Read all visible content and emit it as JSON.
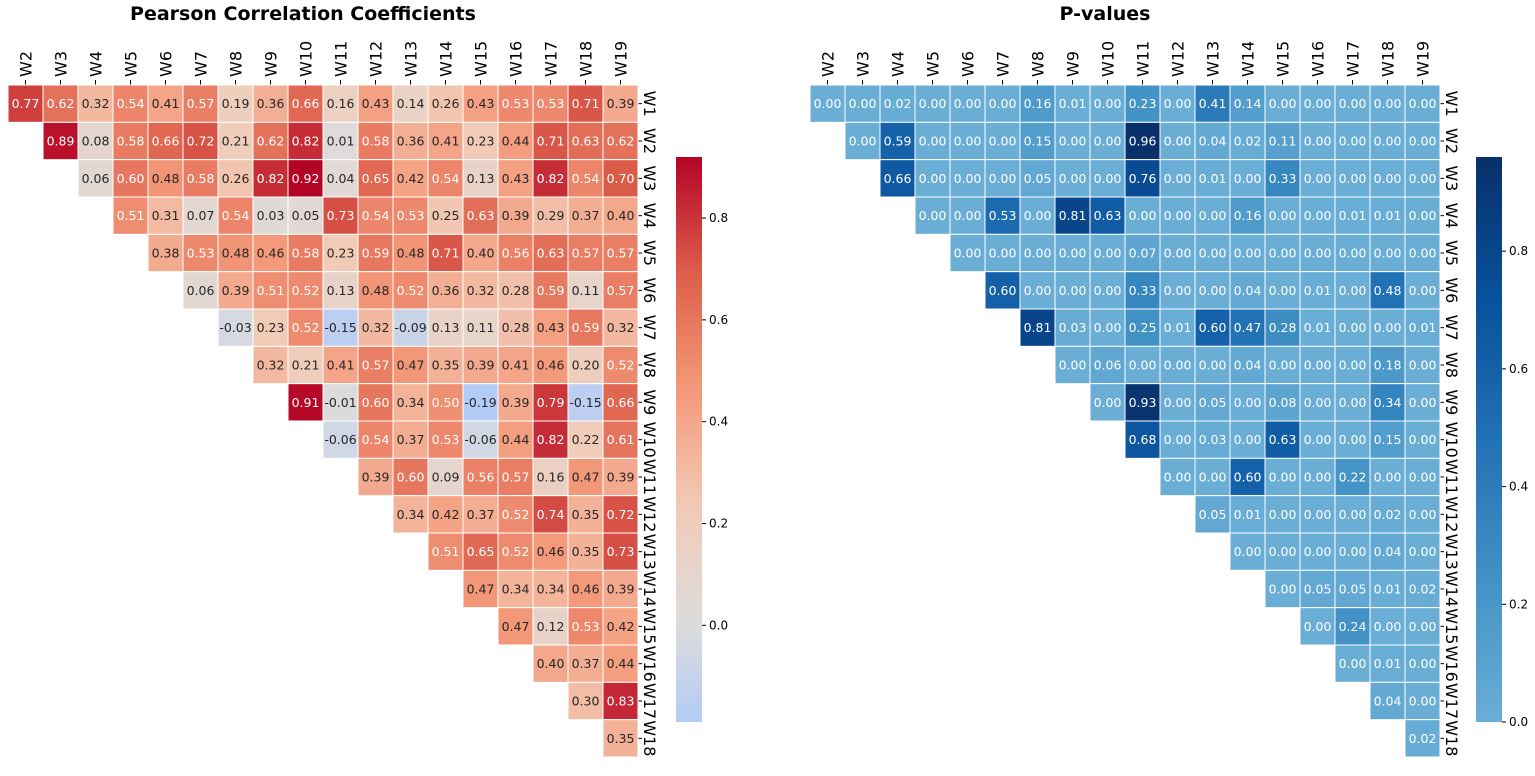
{
  "chart_data": [
    {
      "type": "heatmap",
      "title": "Pearson Correlation Coefficients",
      "row_labels": [
        "W1",
        "W2",
        "W3",
        "W4",
        "W5",
        "W6",
        "W7",
        "W8",
        "W9",
        "W10",
        "W11",
        "W12",
        "W13",
        "W14",
        "W15",
        "W16",
        "W17",
        "W18"
      ],
      "col_labels": [
        "W2",
        "W3",
        "W4",
        "W5",
        "W6",
        "W7",
        "W8",
        "W9",
        "W10",
        "W11",
        "W12",
        "W13",
        "W14",
        "W15",
        "W16",
        "W17",
        "W18",
        "W19"
      ],
      "mask": "upper-triangle; row Wi starts at column W(i+1)",
      "values": [
        [
          0.77,
          0.62,
          0.32,
          0.54,
          0.41,
          0.57,
          0.19,
          0.36,
          0.66,
          0.16,
          0.43,
          0.14,
          0.26,
          0.43,
          0.53,
          0.53,
          0.71,
          0.39
        ],
        [
          0.89,
          0.08,
          0.58,
          0.66,
          0.72,
          0.21,
          0.62,
          0.82,
          0.01,
          0.58,
          0.36,
          0.41,
          0.23,
          0.44,
          0.71,
          0.63,
          0.62
        ],
        [
          0.06,
          0.6,
          0.48,
          0.58,
          0.26,
          0.82,
          0.92,
          0.04,
          0.65,
          0.42,
          0.54,
          0.13,
          0.43,
          0.82,
          0.54,
          0.7
        ],
        [
          0.51,
          0.31,
          0.07,
          0.54,
          0.03,
          0.05,
          0.73,
          0.54,
          0.53,
          0.25,
          0.63,
          0.39,
          0.29,
          0.37,
          0.4
        ],
        [
          0.38,
          0.53,
          0.48,
          0.46,
          0.58,
          0.23,
          0.59,
          0.48,
          0.71,
          0.4,
          0.56,
          0.63,
          0.57,
          0.57
        ],
        [
          0.06,
          0.39,
          0.51,
          0.52,
          0.13,
          0.48,
          0.52,
          0.36,
          0.32,
          0.28,
          0.59,
          0.11,
          0.57
        ],
        [
          -0.03,
          0.23,
          0.52,
          -0.15,
          0.32,
          -0.09,
          0.13,
          0.11,
          0.28,
          0.43,
          0.59,
          0.32
        ],
        [
          0.32,
          0.21,
          0.41,
          0.57,
          0.47,
          0.35,
          0.39,
          0.41,
          0.46,
          0.2,
          0.52
        ],
        [
          0.91,
          -0.01,
          0.6,
          0.34,
          0.5,
          -0.19,
          0.39,
          0.79,
          -0.15,
          0.66
        ],
        [
          -0.06,
          0.54,
          0.37,
          0.53,
          -0.06,
          0.44,
          0.82,
          0.22,
          0.61
        ],
        [
          0.39,
          0.6,
          0.09,
          0.56,
          0.57,
          0.16,
          0.47,
          0.39
        ],
        [
          0.34,
          0.42,
          0.37,
          0.52,
          0.74,
          0.35,
          0.72
        ],
        [
          0.51,
          0.65,
          0.52,
          0.46,
          0.35,
          0.73
        ],
        [
          0.47,
          0.34,
          0.34,
          0.46,
          0.39
        ],
        [
          0.47,
          0.12,
          0.53,
          0.42
        ],
        [
          0.4,
          0.37,
          0.44
        ],
        [
          0.3,
          0.83
        ],
        [
          0.35
        ]
      ],
      "colormap": "coolwarm",
      "center": 0,
      "vmin": -0.19,
      "vmax": 0.92,
      "colorbar_ticks": [
        "0.0",
        "0.2",
        "0.4",
        "0.6",
        "0.8"
      ],
      "colorbar_tick_values": [
        0,
        0.2,
        0.4,
        0.6,
        0.8
      ]
    },
    {
      "type": "heatmap",
      "title": "P-values",
      "row_labels": [
        "W1",
        "W2",
        "W3",
        "W4",
        "W5",
        "W6",
        "W7",
        "W8",
        "W9",
        "W10",
        "W11",
        "W12",
        "W13",
        "W14",
        "W15",
        "W16",
        "W17",
        "W18"
      ],
      "col_labels": [
        "W2",
        "W3",
        "W4",
        "W5",
        "W6",
        "W7",
        "W8",
        "W9",
        "W10",
        "W11",
        "W12",
        "W13",
        "W14",
        "W15",
        "W16",
        "W17",
        "W18",
        "W19"
      ],
      "mask": "upper-triangle; row Wi starts at column W(i+1)",
      "values": [
        [
          0.0,
          0.0,
          0.02,
          0.0,
          0.0,
          0.0,
          0.16,
          0.01,
          0.0,
          0.23,
          0.0,
          0.41,
          0.14,
          0.0,
          0.0,
          0.0,
          0.0,
          0.0
        ],
        [
          0.0,
          0.59,
          0.0,
          0.0,
          0.0,
          0.15,
          0.0,
          0.0,
          0.96,
          0.0,
          0.04,
          0.02,
          0.11,
          0.0,
          0.0,
          0.0,
          0.0
        ],
        [
          0.66,
          0.0,
          0.0,
          0.0,
          0.05,
          0.0,
          0.0,
          0.76,
          0.0,
          0.01,
          0.0,
          0.33,
          0.0,
          0.0,
          0.0,
          0.0
        ],
        [
          0.0,
          0.0,
          0.53,
          0.0,
          0.81,
          0.63,
          0.0,
          0.0,
          0.0,
          0.16,
          0.0,
          0.0,
          0.01,
          0.01,
          0.0
        ],
        [
          0.0,
          0.0,
          0.0,
          0.0,
          0.0,
          0.07,
          0.0,
          0.0,
          0.0,
          0.0,
          0.0,
          0.0,
          0.0,
          0.0
        ],
        [
          0.6,
          0.0,
          0.0,
          0.0,
          0.33,
          0.0,
          0.0,
          0.04,
          0.0,
          0.01,
          0.0,
          0.48,
          0.0
        ],
        [
          0.81,
          0.03,
          0.0,
          0.25,
          0.01,
          0.6,
          0.47,
          0.28,
          0.01,
          0.0,
          0.0,
          0.01
        ],
        [
          0.0,
          0.06,
          0.0,
          0.0,
          0.0,
          0.04,
          0.0,
          0.0,
          0.0,
          0.18,
          0.0
        ],
        [
          0.0,
          0.93,
          0.0,
          0.05,
          0.0,
          0.08,
          0.0,
          0.0,
          0.34,
          0.0
        ],
        [
          0.68,
          0.0,
          0.03,
          0.0,
          0.63,
          0.0,
          0.0,
          0.15,
          0.0
        ],
        [
          0.0,
          0.0,
          0.6,
          0.0,
          0.0,
          0.22,
          0.0,
          0.0
        ],
        [
          0.05,
          0.01,
          0.0,
          0.0,
          0.0,
          0.02,
          0.0
        ],
        [
          0.0,
          0.0,
          0.0,
          0.0,
          0.04,
          0.0
        ],
        [
          0.0,
          0.05,
          0.05,
          0.01,
          0.02
        ],
        [
          0.0,
          0.24,
          0.0,
          0.0
        ],
        [
          0.0,
          0.01,
          0.0
        ],
        [
          0.04,
          0.0
        ],
        [
          0.02
        ]
      ],
      "colormap": "Blues",
      "vmin": 0.0,
      "vmax": 0.96,
      "colorbar_ticks": [
        "0.0",
        "0.2",
        "0.4",
        "0.6",
        "0.8"
      ],
      "colorbar_tick_values": [
        0,
        0.2,
        0.4,
        0.6,
        0.8
      ]
    }
  ]
}
